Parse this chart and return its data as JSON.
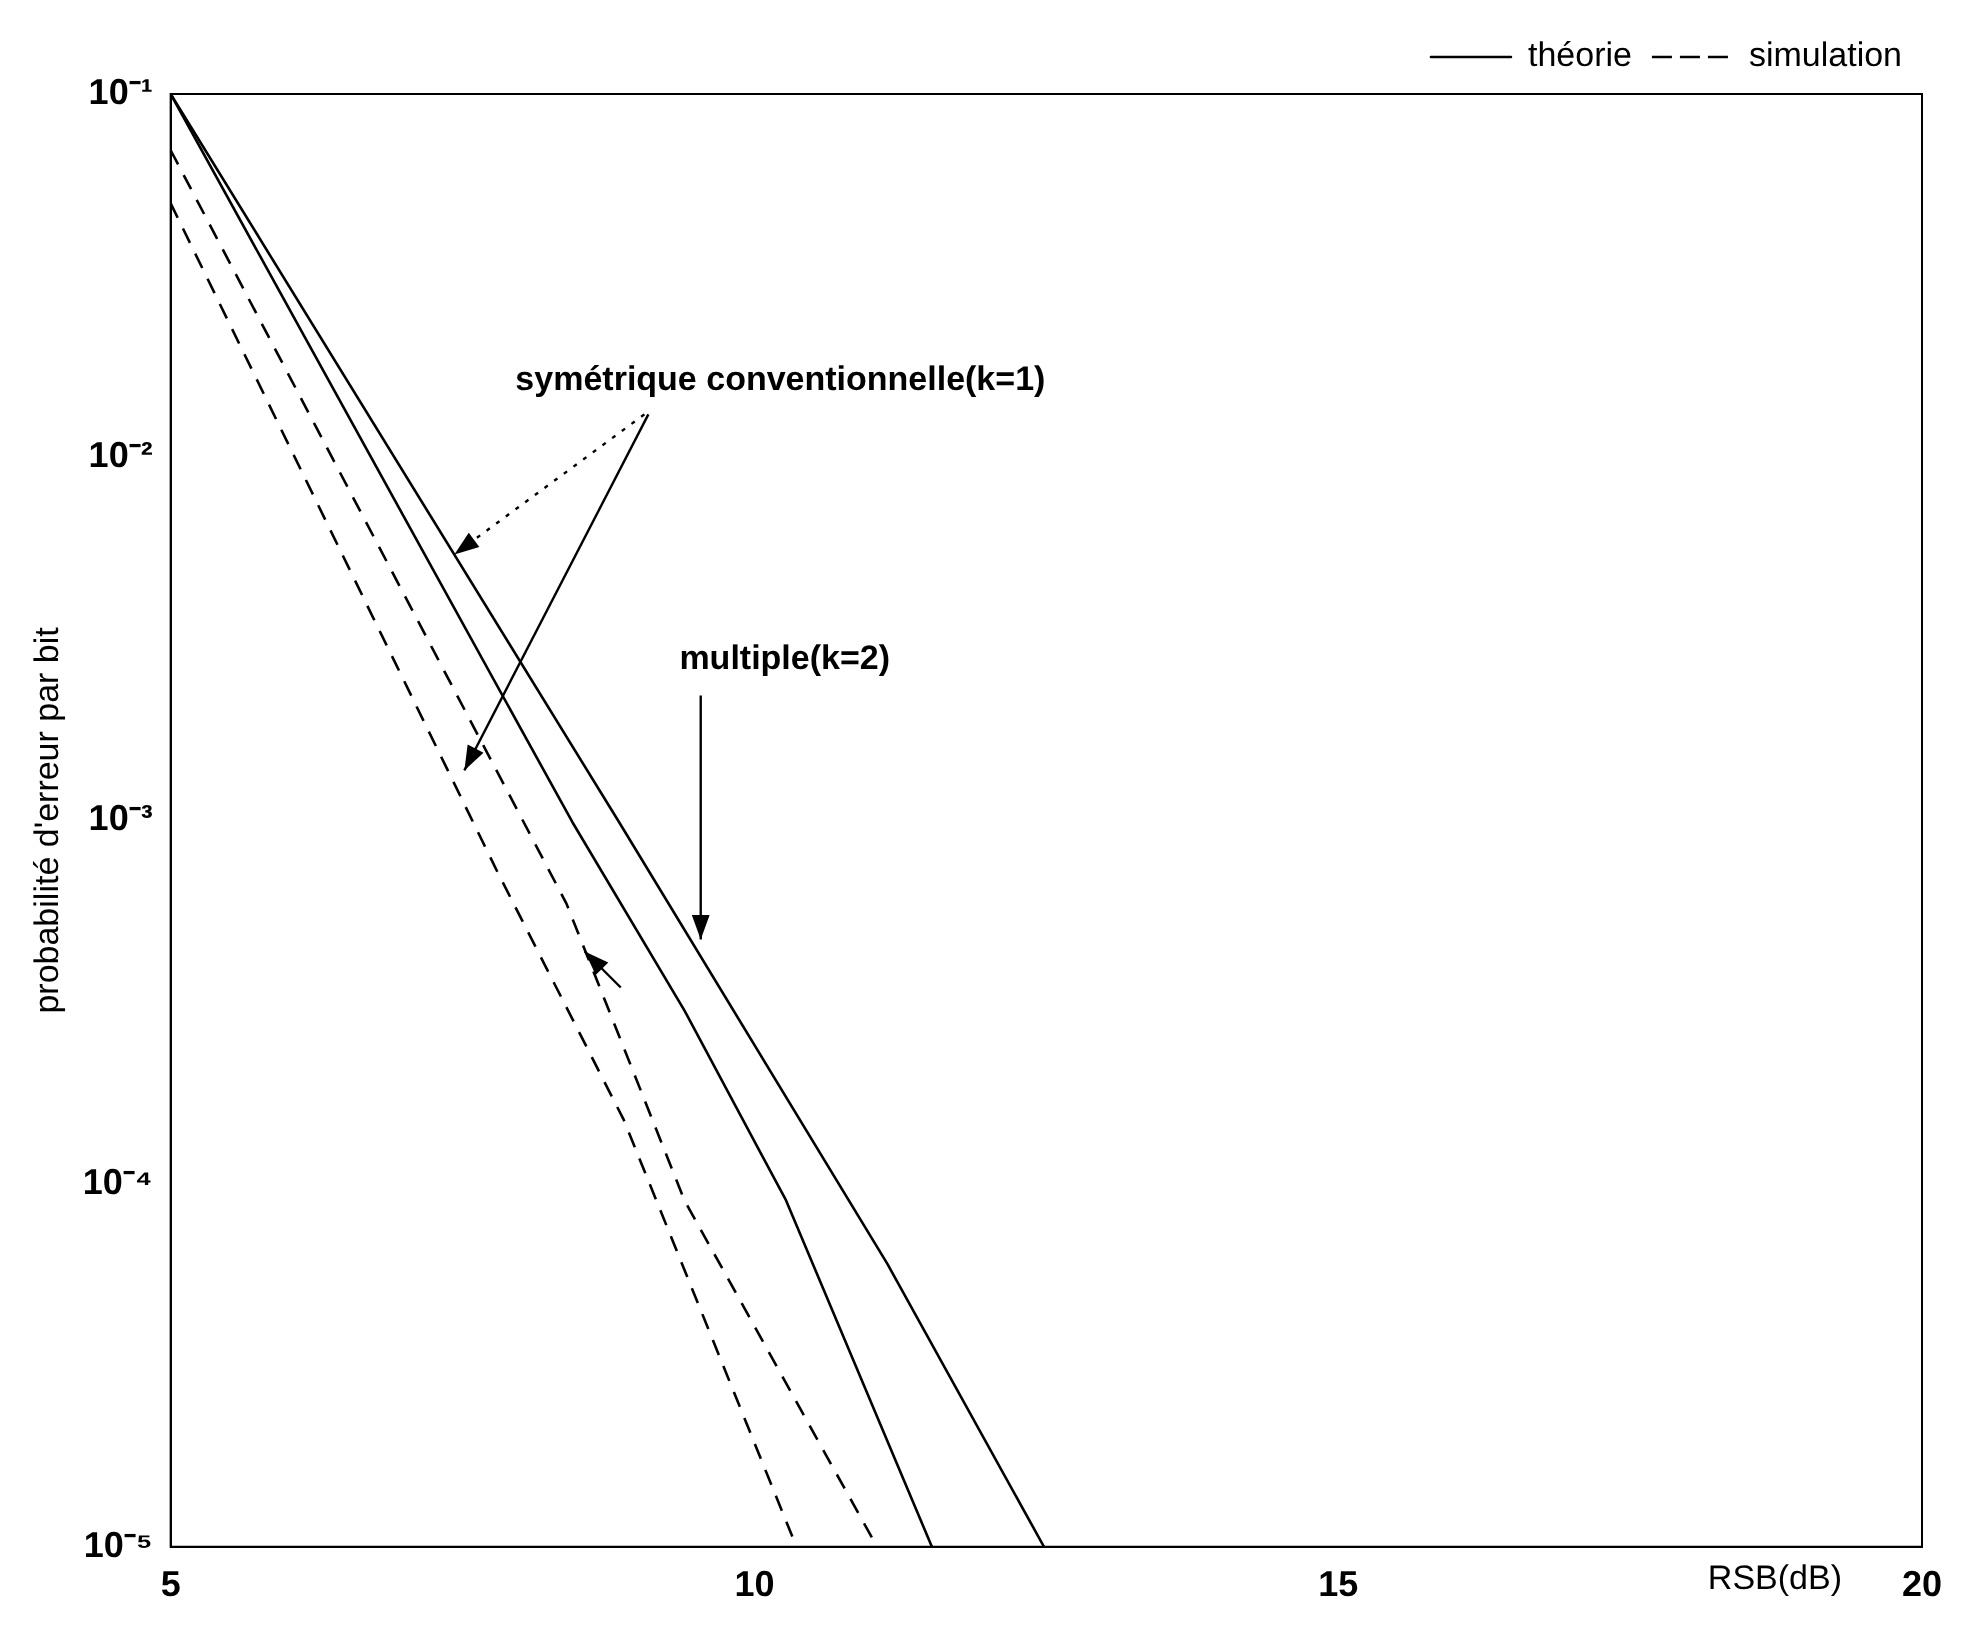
{
  "chart_data": {
    "type": "line",
    "xlabel": "RSB(dB)",
    "ylabel": "probabilité d'erreur par bit",
    "xlim": [
      5,
      20
    ],
    "xticks": [
      5,
      10,
      15,
      20
    ],
    "ylim": [
      1e-05,
      0.1
    ],
    "yticks": [
      {
        "value": 1e-05,
        "label": "10⁻⁵"
      },
      {
        "value": 0.0001,
        "label": "10⁻⁴"
      },
      {
        "value": 0.001,
        "label": "10⁻³"
      },
      {
        "value": 0.01,
        "label": "10⁻²"
      },
      {
        "value": 0.1,
        "label": "10⁻¹"
      }
    ],
    "log": "y",
    "grid": false,
    "legend": "top right",
    "marker": "none",
    "series": [
      {
        "name": "théorie",
        "color": "#000000",
        "line_style": "solid",
        "x": [
          5,
          8.84,
          11.14,
          12.48
        ],
        "values": [
          0.1,
          0.00099,
          6e-05,
          1e-05
        ]
      },
      {
        "color": "#000000",
        "line_style": "solid",
        "x": [
          5,
          8.44,
          9.4,
          10.27,
          11.52
        ],
        "values": [
          0.1,
          0.00099,
          0.0003,
          9e-05,
          1e-05
        ]
      },
      {
        "name": "simulation",
        "color": "#000000",
        "line_style": "dashed",
        "x": [
          5,
          8.39,
          9.4,
          11.05
        ],
        "values": [
          0.07,
          0.00059,
          9e-05,
          1e-05
        ]
      },
      {
        "color": "#000000",
        "line_style": "dashed",
        "x": [
          5,
          7.8,
          8.88,
          10.36
        ],
        "values": [
          0.05,
          0.00072,
          0.00015,
          1e-05
        ]
      }
    ],
    "annotations": [
      {
        "text": "symétrique conventionnelle(k=1)",
        "x": 7.43,
        "y": 0.0054
      },
      {
        "text": "multiple(k=2)",
        "x": 9.54,
        "y": 0.00047
      }
    ]
  }
}
